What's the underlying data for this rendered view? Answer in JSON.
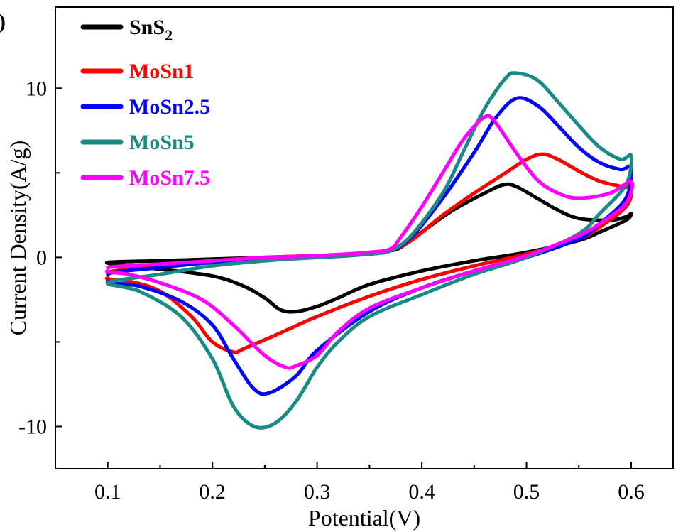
{
  "chart_data": {
    "type": "line",
    "panel_label": ")",
    "xlabel": "Potential(V)",
    "ylabel": "Current Density(A/g)",
    "xlim": [
      0.05,
      0.64
    ],
    "ylim": [
      -12.5,
      14.8
    ],
    "x_ticks": [
      {
        "value": 0.1,
        "label": "0.1"
      },
      {
        "value": 0.2,
        "label": "0.2"
      },
      {
        "value": 0.3,
        "label": "0.3"
      },
      {
        "value": 0.4,
        "label": "0.4"
      },
      {
        "value": 0.5,
        "label": "0.5"
      },
      {
        "value": 0.6,
        "label": "0.6"
      }
    ],
    "y_ticks": [
      {
        "value": 10,
        "label": "10"
      },
      {
        "value": 0,
        "label": "0"
      },
      {
        "value": -10,
        "label": "-10"
      }
    ],
    "grid": false,
    "legend_position": "top-left",
    "series": [
      {
        "name": "SnS2",
        "legend_base": "SnS",
        "legend_sub": "2",
        "color": "#000000",
        "points": [
          [
            0.1,
            -0.3
          ],
          [
            0.15,
            -0.2
          ],
          [
            0.2,
            -0.1
          ],
          [
            0.25,
            0.0
          ],
          [
            0.3,
            0.1
          ],
          [
            0.35,
            0.25
          ],
          [
            0.37,
            0.4
          ],
          [
            0.38,
            0.6
          ],
          [
            0.4,
            1.5
          ],
          [
            0.43,
            2.8
          ],
          [
            0.46,
            3.8
          ],
          [
            0.478,
            4.3
          ],
          [
            0.49,
            4.2
          ],
          [
            0.51,
            3.5
          ],
          [
            0.53,
            2.8
          ],
          [
            0.55,
            2.3
          ],
          [
            0.58,
            2.2
          ],
          [
            0.595,
            2.4
          ],
          [
            0.6,
            2.6
          ],
          [
            0.595,
            2.2
          ],
          [
            0.57,
            1.5
          ],
          [
            0.55,
            1.0
          ],
          [
            0.5,
            0.3
          ],
          [
            0.45,
            -0.2
          ],
          [
            0.4,
            -0.8
          ],
          [
            0.35,
            -1.6
          ],
          [
            0.32,
            -2.4
          ],
          [
            0.3,
            -2.9
          ],
          [
            0.28,
            -3.2
          ],
          [
            0.265,
            -3.1
          ],
          [
            0.25,
            -2.4
          ],
          [
            0.23,
            -1.7
          ],
          [
            0.2,
            -1.1
          ],
          [
            0.15,
            -0.7
          ],
          [
            0.12,
            -0.5
          ],
          [
            0.1,
            -0.3
          ]
        ]
      },
      {
        "name": "MoSn1",
        "legend_base": "MoSn1",
        "legend_sub": "",
        "color": "#ff0000",
        "points": [
          [
            0.1,
            -0.9
          ],
          [
            0.15,
            -0.5
          ],
          [
            0.2,
            -0.2
          ],
          [
            0.25,
            0.0
          ],
          [
            0.3,
            0.1
          ],
          [
            0.35,
            0.2
          ],
          [
            0.37,
            0.4
          ],
          [
            0.39,
            1.0
          ],
          [
            0.42,
            2.5
          ],
          [
            0.45,
            3.8
          ],
          [
            0.48,
            5.0
          ],
          [
            0.5,
            5.8
          ],
          [
            0.515,
            6.1
          ],
          [
            0.53,
            5.8
          ],
          [
            0.55,
            5.1
          ],
          [
            0.57,
            4.5
          ],
          [
            0.59,
            4.2
          ],
          [
            0.6,
            4.0
          ],
          [
            0.595,
            3.0
          ],
          [
            0.57,
            1.8
          ],
          [
            0.55,
            1.1
          ],
          [
            0.5,
            0.2
          ],
          [
            0.45,
            -0.5
          ],
          [
            0.4,
            -1.3
          ],
          [
            0.35,
            -2.3
          ],
          [
            0.3,
            -3.5
          ],
          [
            0.26,
            -4.6
          ],
          [
            0.23,
            -5.4
          ],
          [
            0.22,
            -5.6
          ],
          [
            0.2,
            -5.0
          ],
          [
            0.18,
            -3.5
          ],
          [
            0.15,
            -2.0
          ],
          [
            0.12,
            -1.4
          ],
          [
            0.1,
            -1.2
          ]
        ]
      },
      {
        "name": "MoSn2.5",
        "legend_base": "MoSn2.5",
        "legend_sub": "",
        "color": "#0000ff",
        "points": [
          [
            0.1,
            -1.0
          ],
          [
            0.15,
            -0.6
          ],
          [
            0.2,
            -0.3
          ],
          [
            0.25,
            -0.1
          ],
          [
            0.3,
            0.0
          ],
          [
            0.35,
            0.2
          ],
          [
            0.37,
            0.4
          ],
          [
            0.39,
            1.2
          ],
          [
            0.42,
            3.5
          ],
          [
            0.45,
            6.2
          ],
          [
            0.47,
            8.2
          ],
          [
            0.49,
            9.4
          ],
          [
            0.51,
            9.0
          ],
          [
            0.53,
            7.8
          ],
          [
            0.55,
            6.5
          ],
          [
            0.57,
            5.6
          ],
          [
            0.59,
            5.2
          ],
          [
            0.6,
            5.3
          ],
          [
            0.595,
            3.5
          ],
          [
            0.57,
            2.0
          ],
          [
            0.55,
            1.1
          ],
          [
            0.5,
            0.0
          ],
          [
            0.45,
            -0.8
          ],
          [
            0.4,
            -1.8
          ],
          [
            0.35,
            -3.2
          ],
          [
            0.3,
            -5.5
          ],
          [
            0.28,
            -7.0
          ],
          [
            0.255,
            -8.0
          ],
          [
            0.24,
            -7.8
          ],
          [
            0.22,
            -6.0
          ],
          [
            0.2,
            -4.0
          ],
          [
            0.17,
            -2.6
          ],
          [
            0.13,
            -1.7
          ],
          [
            0.1,
            -1.4
          ]
        ]
      },
      {
        "name": "MoSn5",
        "legend_base": "MoSn5",
        "legend_sub": "",
        "color": "#1a8a84",
        "points": [
          [
            0.1,
            -1.5
          ],
          [
            0.15,
            -1.0
          ],
          [
            0.2,
            -0.5
          ],
          [
            0.25,
            -0.2
          ],
          [
            0.3,
            0.0
          ],
          [
            0.35,
            0.2
          ],
          [
            0.37,
            0.4
          ],
          [
            0.39,
            1.3
          ],
          [
            0.42,
            3.8
          ],
          [
            0.44,
            6.3
          ],
          [
            0.46,
            8.8
          ],
          [
            0.48,
            10.6
          ],
          [
            0.49,
            10.9
          ],
          [
            0.51,
            10.5
          ],
          [
            0.53,
            9.2
          ],
          [
            0.55,
            7.8
          ],
          [
            0.57,
            6.5
          ],
          [
            0.59,
            5.8
          ],
          [
            0.6,
            6.0
          ],
          [
            0.595,
            4.3
          ],
          [
            0.57,
            2.6
          ],
          [
            0.55,
            1.4
          ],
          [
            0.5,
            0.0
          ],
          [
            0.45,
            -1.0
          ],
          [
            0.4,
            -2.2
          ],
          [
            0.35,
            -3.5
          ],
          [
            0.32,
            -5.0
          ],
          [
            0.3,
            -6.5
          ],
          [
            0.28,
            -8.5
          ],
          [
            0.26,
            -9.8
          ],
          [
            0.24,
            -10.0
          ],
          [
            0.22,
            -8.8
          ],
          [
            0.2,
            -6.0
          ],
          [
            0.17,
            -3.5
          ],
          [
            0.13,
            -2.0
          ],
          [
            0.1,
            -1.5
          ]
        ]
      },
      {
        "name": "MoSn7.5",
        "legend_base": "MoSn7.5",
        "legend_sub": "",
        "color": "#ff00ff",
        "points": [
          [
            0.1,
            -0.6
          ],
          [
            0.15,
            -0.4
          ],
          [
            0.2,
            -0.2
          ],
          [
            0.25,
            0.0
          ],
          [
            0.3,
            0.1
          ],
          [
            0.35,
            0.3
          ],
          [
            0.37,
            0.5
          ],
          [
            0.38,
            1.2
          ],
          [
            0.4,
            3.0
          ],
          [
            0.42,
            5.0
          ],
          [
            0.44,
            7.0
          ],
          [
            0.46,
            8.3
          ],
          [
            0.47,
            8.0
          ],
          [
            0.49,
            6.2
          ],
          [
            0.51,
            4.6
          ],
          [
            0.53,
            3.8
          ],
          [
            0.55,
            3.5
          ],
          [
            0.58,
            3.8
          ],
          [
            0.6,
            4.5
          ],
          [
            0.595,
            3.2
          ],
          [
            0.57,
            2.0
          ],
          [
            0.55,
            1.3
          ],
          [
            0.5,
            0.1
          ],
          [
            0.45,
            -0.8
          ],
          [
            0.4,
            -1.8
          ],
          [
            0.35,
            -3.0
          ],
          [
            0.32,
            -4.4
          ],
          [
            0.3,
            -5.8
          ],
          [
            0.28,
            -6.4
          ],
          [
            0.27,
            -6.5
          ],
          [
            0.25,
            -5.8
          ],
          [
            0.22,
            -4.0
          ],
          [
            0.19,
            -2.5
          ],
          [
            0.15,
            -1.5
          ],
          [
            0.12,
            -1.0
          ],
          [
            0.1,
            -0.8
          ]
        ]
      }
    ]
  }
}
